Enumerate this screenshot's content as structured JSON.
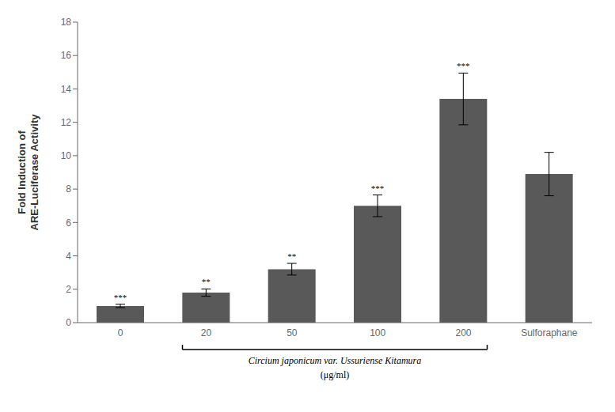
{
  "chart_data": {
    "type": "bar",
    "categories": [
      "0",
      "20",
      "50",
      "100",
      "200",
      "Sulforaphane"
    ],
    "values": [
      1.0,
      1.8,
      3.2,
      7.0,
      13.4,
      8.9
    ],
    "errors": [
      0.1,
      0.22,
      0.35,
      0.65,
      1.55,
      1.3
    ],
    "annotations": [
      "***",
      "**",
      "**",
      "***",
      "***",
      null
    ],
    "color": "#595959",
    "ylabel": "Fold Induction of\nARE-Luciferase Activity",
    "xlabel": "Circium japonicum var. Ussuriense Kitamura",
    "xlabel_sub": "(μg/ml)",
    "ylim": [
      0,
      18
    ],
    "yticks": [
      0,
      2,
      4,
      6,
      8,
      10,
      12,
      14,
      16,
      18
    ],
    "grid": false
  }
}
